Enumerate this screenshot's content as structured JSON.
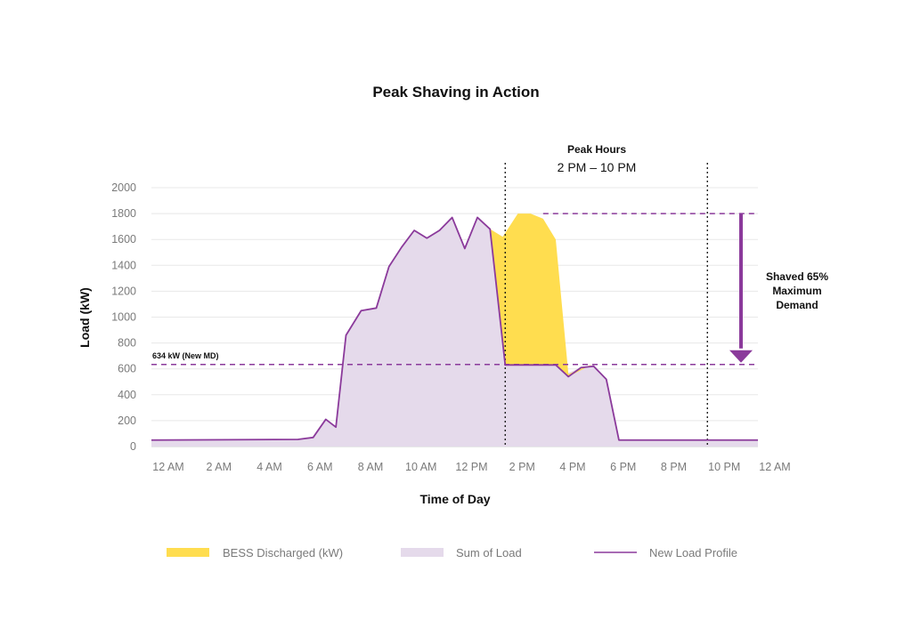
{
  "chart_data": {
    "type": "area",
    "title": "Peak Shaving in Action",
    "xlabel": "Time of Day",
    "ylabel": "Load (kW)",
    "ylim": [
      0,
      2000
    ],
    "yticks": [
      0,
      200,
      400,
      600,
      800,
      1000,
      1200,
      1400,
      1600,
      1800,
      2000
    ],
    "xticks": [
      "12 AM",
      "2 AM",
      "4 AM",
      "6 AM",
      "8 AM",
      "10 AM",
      "12 PM",
      "2 PM",
      "4 PM",
      "6 PM",
      "8 PM",
      "10 PM",
      "12 AM"
    ],
    "xlim": [
      0,
      24
    ],
    "grid": true,
    "legend_position": "bottom",
    "series": [
      {
        "name": "Sum of Load",
        "color": "#E5DAEB",
        "x": [
          0,
          5.8,
          6.4,
          6.9,
          7.3,
          7.7,
          8.3,
          8.9,
          9.4,
          9.9,
          10.4,
          10.9,
          11.4,
          11.9,
          12.4,
          12.9,
          13.4,
          13.9,
          14.0,
          14.5,
          15.0,
          15.5,
          16.0,
          16.5,
          17.0,
          17.5,
          18.0,
          18.5,
          19.0,
          24
        ],
        "y": [
          50,
          55,
          70,
          210,
          150,
          860,
          1050,
          1070,
          1390,
          1540,
          1670,
          1610,
          1670,
          1770,
          1530,
          1770,
          1680,
          1620,
          630,
          630,
          630,
          630,
          630,
          570,
          610,
          630,
          520,
          50,
          50,
          50
        ]
      },
      {
        "name": "BESS Discharged (kW)",
        "color": "#FFDD4F",
        "x": [
          13.4,
          13.9,
          14.5,
          15.0,
          15.5,
          16.0,
          16.5,
          17.5
        ],
        "y": [
          1680,
          1620,
          1800,
          1800,
          1760,
          1600,
          560,
          640
        ]
      },
      {
        "name": "New Load Profile",
        "color": "#8B3A9B",
        "x": [
          0,
          5.8,
          6.4,
          6.9,
          7.3,
          7.7,
          8.3,
          8.9,
          9.4,
          9.9,
          10.4,
          10.9,
          11.4,
          11.9,
          12.4,
          12.9,
          13.4,
          14.0,
          14.5,
          15.0,
          15.5,
          16.0,
          16.5,
          17.0,
          17.5,
          18.0,
          18.5,
          19.0,
          24
        ],
        "y": [
          50,
          55,
          70,
          210,
          150,
          860,
          1050,
          1070,
          1390,
          1540,
          1670,
          1610,
          1670,
          1770,
          1530,
          1770,
          1680,
          630,
          630,
          630,
          630,
          630,
          540,
          610,
          620,
          520,
          50,
          50,
          50
        ]
      }
    ],
    "reference_lines": {
      "new_md": {
        "y": 634,
        "label": "634 kW (New MD)"
      },
      "old_md": {
        "y": 1800
      }
    },
    "peak_hours": {
      "title": "Peak Hours",
      "range": "2 PM – 10 PM",
      "start": 14,
      "end": 22
    },
    "annotation": {
      "lines": [
        "Shaved 65%",
        "Maximum",
        "Demand"
      ]
    },
    "legend": [
      {
        "label": "BESS Discharged (kW)",
        "type": "box",
        "color": "#FFDD4F"
      },
      {
        "label": "Sum of Load",
        "type": "box",
        "color": "#E5DAEB"
      },
      {
        "label": "New Load Profile",
        "type": "line",
        "color": "#8B3A9B"
      }
    ]
  }
}
